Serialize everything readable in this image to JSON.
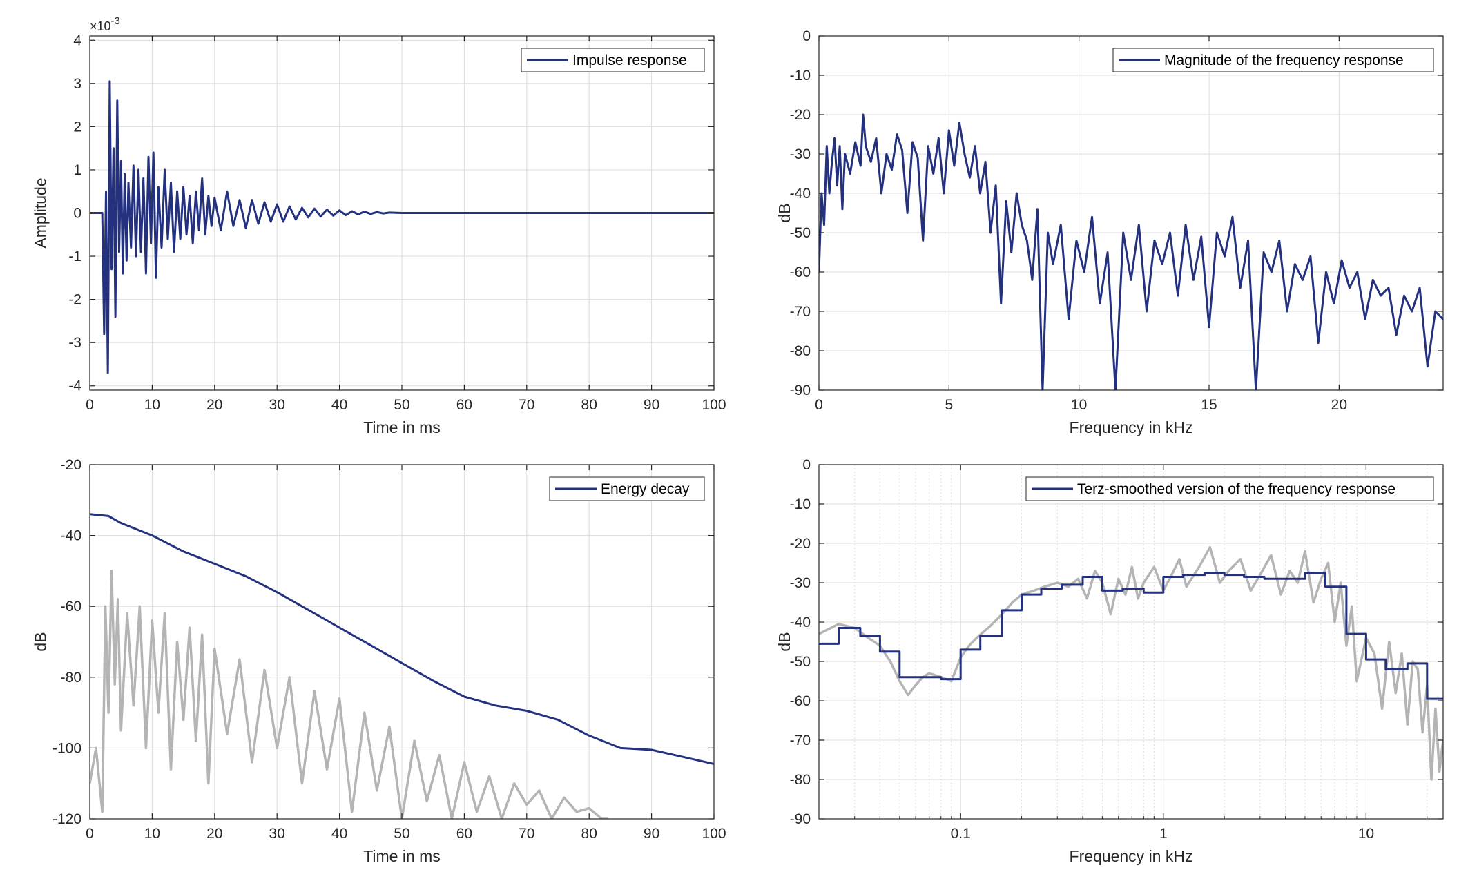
{
  "colors": {
    "series": "#24317e",
    "background_trace": "#b4b4b4",
    "grid": "#dcdcdc",
    "axes": "#262626"
  },
  "chart_data": [
    {
      "type": "line",
      "legend": "Impulse response",
      "legend_position": "top-right",
      "xlabel": "Time in ms",
      "ylabel": "Amplitude",
      "exponent_label": "×10",
      "exponent_power": "-3",
      "xlim": [
        0,
        100
      ],
      "ylim": [
        -4.1,
        4.1
      ],
      "x_ticks": [
        "0",
        "10",
        "20",
        "30",
        "40",
        "50",
        "60",
        "70",
        "80",
        "90",
        "100"
      ],
      "y_ticks": [
        "-4",
        "-3",
        "-2",
        "-1",
        "0",
        "1",
        "2",
        "3",
        "4"
      ],
      "grid": true,
      "series": [
        {
          "name": "Impulse response",
          "x": [
            0,
            2,
            2.3,
            2.6,
            2.9,
            3.2,
            3.5,
            3.8,
            4.1,
            4.4,
            4.7,
            5.0,
            5.3,
            5.6,
            5.9,
            6.2,
            6.6,
            7.0,
            7.4,
            7.8,
            8.2,
            8.6,
            9.0,
            9.4,
            9.8,
            10.2,
            10.6,
            11.0,
            11.5,
            12.0,
            12.5,
            13.0,
            13.5,
            14.0,
            14.5,
            15.0,
            15.5,
            16.0,
            16.5,
            17.0,
            17.5,
            18.0,
            18.5,
            19.0,
            19.5,
            20.0,
            21,
            22,
            23,
            24,
            25,
            26,
            27,
            28,
            29,
            30,
            31,
            32,
            33,
            34,
            35,
            36,
            37,
            38,
            39,
            40,
            41,
            42,
            43,
            44,
            45,
            46,
            47,
            48,
            50,
            60,
            70,
            80,
            90,
            100
          ],
          "values": [
            0,
            0,
            -2.8,
            0.5,
            -3.7,
            3.05,
            -1.3,
            1.5,
            -2.4,
            2.6,
            -0.9,
            1.2,
            -1.4,
            0.9,
            -1.1,
            0.7,
            -0.8,
            1.1,
            -1.0,
            1.0,
            -0.9,
            0.8,
            -1.4,
            1.3,
            -0.7,
            1.4,
            -1.5,
            0.6,
            -0.8,
            1.0,
            -0.6,
            0.7,
            -0.9,
            0.5,
            -0.6,
            0.6,
            -0.5,
            0.4,
            -0.7,
            0.5,
            -0.4,
            0.8,
            -0.5,
            0.4,
            -0.3,
            0.35,
            -0.4,
            0.5,
            -0.3,
            0.3,
            -0.35,
            0.3,
            -0.25,
            0.25,
            -0.2,
            0.2,
            -0.2,
            0.15,
            -0.15,
            0.12,
            -0.1,
            0.1,
            -0.08,
            0.08,
            -0.06,
            0.06,
            -0.05,
            0.04,
            -0.03,
            0.03,
            -0.02,
            0.02,
            -0.01,
            0.01,
            0,
            0,
            0,
            0,
            0,
            0
          ]
        }
      ]
    },
    {
      "type": "line",
      "legend": "Magnitude of the frequency response",
      "legend_position": "top-right",
      "xlabel": "Frequency in kHz",
      "ylabel": "dB",
      "xlim": [
        0,
        24
      ],
      "ylim": [
        -90,
        0
      ],
      "x_ticks": [
        "0",
        "5",
        "10",
        "15",
        "20"
      ],
      "y_ticks": [
        "0",
        "-10",
        "-20",
        "-30",
        "-40",
        "-50",
        "-60",
        "-70",
        "-80",
        "-90"
      ],
      "grid": true,
      "series": [
        {
          "name": "Magnitude of the frequency response",
          "x": [
            0,
            0.1,
            0.2,
            0.3,
            0.4,
            0.5,
            0.6,
            0.7,
            0.8,
            0.9,
            1.0,
            1.2,
            1.4,
            1.6,
            1.7,
            1.8,
            2.0,
            2.2,
            2.4,
            2.6,
            2.8,
            3.0,
            3.2,
            3.4,
            3.6,
            3.8,
            4.0,
            4.2,
            4.4,
            4.6,
            4.8,
            5.0,
            5.2,
            5.4,
            5.6,
            5.8,
            6.0,
            6.2,
            6.4,
            6.6,
            6.8,
            7.0,
            7.2,
            7.4,
            7.6,
            7.8,
            8.0,
            8.2,
            8.4,
            8.6,
            8.8,
            9.0,
            9.3,
            9.6,
            9.9,
            10.2,
            10.5,
            10.8,
            11.1,
            11.4,
            11.7,
            12.0,
            12.3,
            12.6,
            12.9,
            13.2,
            13.5,
            13.8,
            14.1,
            14.4,
            14.7,
            15.0,
            15.3,
            15.6,
            15.9,
            16.2,
            16.5,
            16.8,
            17.1,
            17.4,
            17.7,
            18.0,
            18.3,
            18.6,
            18.9,
            19.2,
            19.5,
            19.8,
            20.1,
            20.4,
            20.7,
            21.0,
            21.3,
            21.6,
            21.9,
            22.2,
            22.5,
            22.8,
            23.1,
            23.4,
            23.7,
            24.0
          ],
          "values": [
            -60,
            -40,
            -48,
            -28,
            -40,
            -32,
            -26,
            -38,
            -28,
            -44,
            -30,
            -35,
            -27,
            -33,
            -20,
            -28,
            -32,
            -26,
            -40,
            -30,
            -34,
            -25,
            -29,
            -45,
            -27,
            -31,
            -52,
            -28,
            -35,
            -26,
            -40,
            -24,
            -33,
            -22,
            -30,
            -36,
            -28,
            -40,
            -32,
            -50,
            -38,
            -68,
            -42,
            -55,
            -40,
            -48,
            -52,
            -62,
            -44,
            -90,
            -50,
            -58,
            -48,
            -72,
            -52,
            -60,
            -46,
            -68,
            -55,
            -90,
            -50,
            -62,
            -48,
            -70,
            -52,
            -58,
            -50,
            -66,
            -48,
            -62,
            -51,
            -74,
            -50,
            -56,
            -46,
            -64,
            -52,
            -90,
            -55,
            -60,
            -52,
            -70,
            -58,
            -62,
            -56,
            -78,
            -60,
            -68,
            -57,
            -64,
            -60,
            -72,
            -62,
            -66,
            -64,
            -76,
            -66,
            -70,
            -64,
            -84,
            -70,
            -72
          ]
        }
      ]
    },
    {
      "type": "line",
      "legend": "Energy decay",
      "legend_position": "top-right",
      "xlabel": "Time in ms",
      "ylabel": "dB",
      "xlim": [
        0,
        100
      ],
      "ylim": [
        -120,
        -20
      ],
      "x_ticks": [
        "0",
        "10",
        "20",
        "30",
        "40",
        "50",
        "60",
        "70",
        "80",
        "90",
        "100"
      ],
      "y_ticks": [
        "-20",
        "-40",
        "-60",
        "-80",
        "-100",
        "-120"
      ],
      "grid": true,
      "series": [
        {
          "name": "Energy decay",
          "x": [
            0,
            3,
            5,
            10,
            15,
            20,
            25,
            30,
            35,
            40,
            45,
            50,
            55,
            60,
            65,
            70,
            75,
            80,
            85,
            90,
            95,
            100
          ],
          "values": [
            -34,
            -34.5,
            -36.5,
            -40,
            -44.5,
            -48,
            -51.5,
            -56,
            -61,
            -66,
            -71,
            -76,
            -81,
            -85.5,
            -88,
            -89.5,
            -92,
            -96.5,
            -100,
            -100.5,
            -102.5,
            -104.5
          ]
        },
        {
          "name": "",
          "x": [
            0,
            1,
            2,
            2.5,
            3,
            3.5,
            4,
            4.5,
            5,
            6,
            7,
            8,
            9,
            10,
            11,
            12,
            13,
            14,
            15,
            16,
            17,
            18,
            19,
            20,
            22,
            24,
            26,
            28,
            30,
            32,
            34,
            36,
            38,
            40,
            42,
            44,
            46,
            48,
            50,
            52,
            54,
            56,
            58,
            60,
            62,
            64,
            66,
            68,
            70,
            72,
            74,
            76,
            78,
            80,
            82,
            83
          ],
          "values": [
            -110,
            -100,
            -118,
            -60,
            -90,
            -50,
            -82,
            -58,
            -95,
            -62,
            -88,
            -60,
            -100,
            -64,
            -90,
            -62,
            -106,
            -70,
            -92,
            -66,
            -98,
            -68,
            -110,
            -72,
            -96,
            -75,
            -104,
            -78,
            -100,
            -80,
            -110,
            -84,
            -106,
            -86,
            -118,
            -90,
            -112,
            -94,
            -120,
            -98,
            -115,
            -102,
            -120,
            -104,
            -118,
            -108,
            -120,
            -110,
            -116,
            -112,
            -120,
            -114,
            -118,
            -117,
            -120,
            -120
          ]
        }
      ]
    },
    {
      "type": "line",
      "legend": "Terz-smoothed version of the frequency response",
      "legend_position": "top-right",
      "xlabel": "Frequency in kHz",
      "ylabel": "dB",
      "x_scale": "log",
      "xlim": [
        0.02,
        24
      ],
      "ylim": [
        -90,
        0
      ],
      "x_ticks": [
        "0.1",
        "1",
        "10"
      ],
      "y_ticks": [
        "0",
        "-10",
        "-20",
        "-30",
        "-40",
        "-50",
        "-60",
        "-70",
        "-80",
        "-90"
      ],
      "grid": true,
      "series": [
        {
          "name": "Terz-smoothed version of the frequency response",
          "x": [
            0.02,
            0.025,
            0.025,
            0.032,
            0.032,
            0.04,
            0.04,
            0.05,
            0.05,
            0.063,
            0.063,
            0.08,
            0.08,
            0.1,
            0.1,
            0.125,
            0.125,
            0.16,
            0.16,
            0.2,
            0.2,
            0.25,
            0.25,
            0.315,
            0.315,
            0.4,
            0.4,
            0.5,
            0.5,
            0.63,
            0.63,
            0.8,
            0.8,
            1.0,
            1.0,
            1.25,
            1.25,
            1.6,
            1.6,
            2.0,
            2.0,
            2.5,
            2.5,
            3.15,
            3.15,
            4.0,
            4.0,
            5.0,
            5.0,
            6.3,
            6.3,
            8.0,
            8.0,
            10,
            10,
            12.5,
            12.5,
            16,
            16,
            20,
            20,
            24
          ],
          "values": [
            -45.5,
            -45.5,
            -41.5,
            -41.5,
            -43.5,
            -43.5,
            -47.5,
            -47.5,
            -54,
            -54,
            -54,
            -54,
            -54.5,
            -54.5,
            -47,
            -47,
            -43.5,
            -43.5,
            -37,
            -37,
            -33,
            -33,
            -31.5,
            -31.5,
            -30.5,
            -30.5,
            -28.5,
            -28.5,
            -32,
            -32,
            -31.5,
            -31.5,
            -32.5,
            -32.5,
            -28.5,
            -28.5,
            -28,
            -28,
            -27.5,
            -27.5,
            -28,
            -28,
            -28.5,
            -28.5,
            -29,
            -29,
            -29,
            -29,
            -27.5,
            -27.5,
            -31,
            -31,
            -43,
            -43,
            -49.5,
            -49.5,
            -52,
            -52,
            -50.5,
            -50.5,
            -59.5,
            -59.5
          ]
        },
        {
          "name": "",
          "x": [
            0.02,
            0.025,
            0.03,
            0.035,
            0.04,
            0.045,
            0.05,
            0.055,
            0.06,
            0.065,
            0.07,
            0.08,
            0.09,
            0.1,
            0.11,
            0.12,
            0.14,
            0.16,
            0.18,
            0.2,
            0.23,
            0.26,
            0.3,
            0.34,
            0.38,
            0.42,
            0.46,
            0.5,
            0.55,
            0.6,
            0.65,
            0.7,
            0.75,
            0.8,
            0.9,
            1.0,
            1.1,
            1.2,
            1.3,
            1.5,
            1.7,
            1.9,
            2.1,
            2.4,
            2.7,
            3.0,
            3.4,
            3.8,
            4.2,
            4.6,
            5.0,
            5.5,
            6.0,
            6.5,
            7.0,
            7.5,
            8.0,
            8.5,
            9.0,
            10,
            11,
            12,
            13,
            14,
            15,
            16,
            17,
            18,
            19,
            20,
            21,
            22,
            23,
            24
          ],
          "values": [
            -43,
            -40.5,
            -41.5,
            -44,
            -46,
            -50,
            -55,
            -58.5,
            -56,
            -54,
            -53,
            -54,
            -55,
            -49,
            -46,
            -44,
            -41,
            -38,
            -35,
            -33,
            -32,
            -31,
            -30,
            -31,
            -29,
            -34,
            -27,
            -30,
            -38,
            -29,
            -33,
            -26,
            -34,
            -30,
            -26,
            -32,
            -28,
            -24,
            -31,
            -26,
            -21,
            -30,
            -27,
            -24,
            -32,
            -28,
            -23,
            -33,
            -27,
            -30,
            -22,
            -35,
            -29,
            -25,
            -40,
            -30,
            -46,
            -36,
            -55,
            -44,
            -48,
            -62,
            -45,
            -58,
            -48,
            -66,
            -50,
            -52,
            -68,
            -56,
            -80,
            -62,
            -78,
            -70
          ]
        }
      ]
    }
  ]
}
